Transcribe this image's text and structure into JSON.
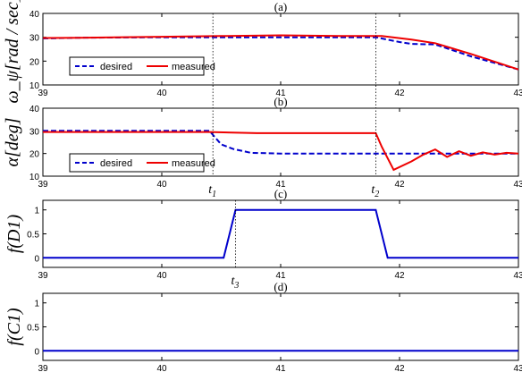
{
  "chart_data": [
    {
      "id": "a",
      "type": "line",
      "panel_label": "(a)",
      "ylabel": "ω_ψ[rad / sec]",
      "xlim": [
        39,
        43
      ],
      "ylim": [
        10,
        40
      ],
      "xticks": [
        39,
        40,
        41,
        42,
        43
      ],
      "yticks": [
        10,
        20,
        30,
        40
      ],
      "legend": {
        "placement": "bottom-left"
      },
      "series": [
        {
          "name": "desired",
          "color": "#0000cc",
          "style": "dashed",
          "x": [
            39,
            39.3,
            40,
            40.5,
            41,
            41.5,
            41.8,
            42.0,
            42.1,
            42.3,
            42.6,
            43
          ],
          "y": [
            29.5,
            29.8,
            30,
            30,
            30,
            30,
            30,
            28,
            27.2,
            27,
            22,
            16.5
          ]
        },
        {
          "name": "measured",
          "color": "#ee0000",
          "style": "solid",
          "x": [
            39,
            39.3,
            40,
            40.5,
            41,
            41.5,
            41.85,
            42.1,
            42.3,
            42.6,
            43
          ],
          "y": [
            29.7,
            29.8,
            30.2,
            30.5,
            30.8,
            30.5,
            30.5,
            29,
            27.5,
            23,
            16.5
          ]
        }
      ]
    },
    {
      "id": "b",
      "type": "line",
      "panel_label": "(b)",
      "ylabel": "α[deg]",
      "xlim": [
        39,
        43
      ],
      "ylim": [
        10,
        40
      ],
      "xticks": [
        39,
        40,
        41,
        42,
        43
      ],
      "yticks": [
        10,
        20,
        30,
        40
      ],
      "legend": {
        "placement": "bottom-center"
      },
      "series": [
        {
          "name": "desired",
          "color": "#0000cc",
          "style": "dashed",
          "x": [
            39,
            40.4,
            40.45,
            40.5,
            40.6,
            40.75,
            41,
            42,
            43
          ],
          "y": [
            30,
            30,
            27,
            24,
            22,
            20.3,
            20,
            20,
            20
          ]
        },
        {
          "name": "measured",
          "color": "#ee0000",
          "style": "solid",
          "x": [
            39,
            40.4,
            40.8,
            41.8,
            41.85,
            41.95,
            42.1,
            42.2,
            42.3,
            42.4,
            42.5,
            42.6,
            42.7,
            42.8,
            42.9,
            43
          ],
          "y": [
            29.5,
            29.5,
            29,
            29,
            23,
            12.8,
            16.5,
            19.5,
            21.8,
            18.5,
            21,
            19,
            20.5,
            19.5,
            20.3,
            20
          ]
        }
      ]
    },
    {
      "id": "c",
      "type": "line",
      "panel_label": "(c)",
      "ylabel": "f(D1)",
      "xlim": [
        39,
        43
      ],
      "ylim": [
        -0.2,
        1.2
      ],
      "xticks": [
        39,
        40,
        41,
        42,
        43
      ],
      "yticks": [
        0,
        0.5,
        1
      ],
      "series": [
        {
          "color": "#0000cc",
          "style": "solid",
          "x": [
            39,
            40.52,
            40.62,
            41.8,
            41.9,
            43
          ],
          "y": [
            0,
            0,
            1,
            1,
            0,
            0
          ]
        }
      ]
    },
    {
      "id": "d",
      "type": "line",
      "panel_label": "(d)",
      "ylabel": "f(C1)",
      "xlim": [
        39,
        43
      ],
      "ylim": [
        -0.2,
        1.2
      ],
      "xticks": [
        39,
        40,
        41,
        42,
        43
      ],
      "yticks": [
        0,
        0.5,
        1
      ],
      "series": [
        {
          "color": "#0000cc",
          "style": "solid",
          "x": [
            39,
            43
          ],
          "y": [
            0,
            0
          ]
        }
      ]
    }
  ],
  "markers": [
    {
      "label": "t",
      "sub": "1",
      "x": 40.43,
      "panels": [
        "a",
        "b"
      ]
    },
    {
      "label": "t",
      "sub": "2",
      "x": 41.8,
      "panels": [
        "a",
        "b"
      ]
    },
    {
      "label": "t",
      "sub": "3",
      "x": 40.62,
      "panels": [
        "c"
      ]
    }
  ]
}
